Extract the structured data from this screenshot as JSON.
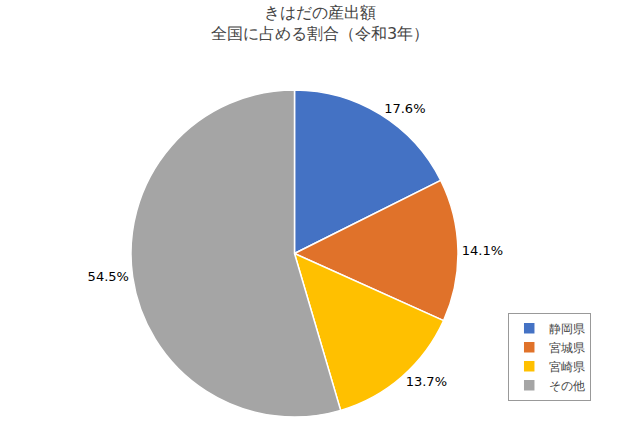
{
  "chart_data": {
    "type": "pie",
    "title": "きはだの産出額\n全国に占める割合（令和3年）",
    "categories": [
      "静岡県",
      "宮城県",
      "宮崎県",
      "その他"
    ],
    "values": [
      17.6,
      14.1,
      13.7,
      54.5
    ],
    "value_labels": [
      "17.6%",
      "14.1%",
      "13.7%",
      "54.5%"
    ],
    "colors": [
      "#4472C4",
      "#E0722A",
      "#FFC000",
      "#A5A5A5"
    ],
    "data_labels": true,
    "legend": "lower right"
  }
}
